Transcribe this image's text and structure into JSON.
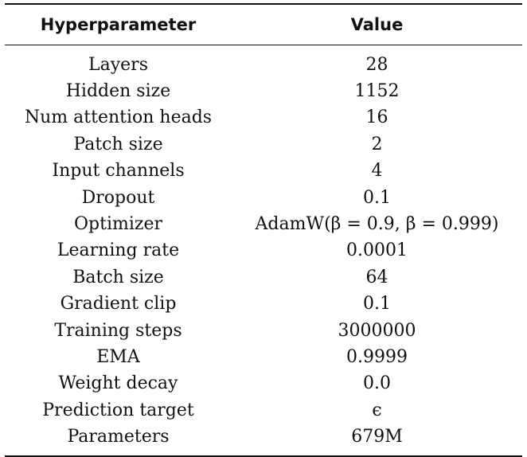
{
  "table": {
    "headers": [
      "Hyperparameter",
      "Value"
    ],
    "rows": [
      {
        "param": "Layers",
        "value": "28"
      },
      {
        "param": "Hidden size",
        "value": "1152"
      },
      {
        "param": "Num attention heads",
        "value": "16"
      },
      {
        "param": "Patch size",
        "value": "2"
      },
      {
        "param": "Input channels",
        "value": "4"
      },
      {
        "param": "Dropout",
        "value": "0.1"
      },
      {
        "param": "Optimizer",
        "value": "AdamW(β = 0.9, β = 0.999)"
      },
      {
        "param": "Learning rate",
        "value": "0.0001"
      },
      {
        "param": "Batch size",
        "value": "64"
      },
      {
        "param": "Gradient clip",
        "value": "0.1"
      },
      {
        "param": "Training steps",
        "value": "3000000"
      },
      {
        "param": "EMA",
        "value": "0.9999"
      },
      {
        "param": "Weight decay",
        "value": "0.0"
      },
      {
        "param": "Prediction target",
        "value": "ϵ"
      },
      {
        "param": "Parameters",
        "value": "679M"
      }
    ]
  }
}
